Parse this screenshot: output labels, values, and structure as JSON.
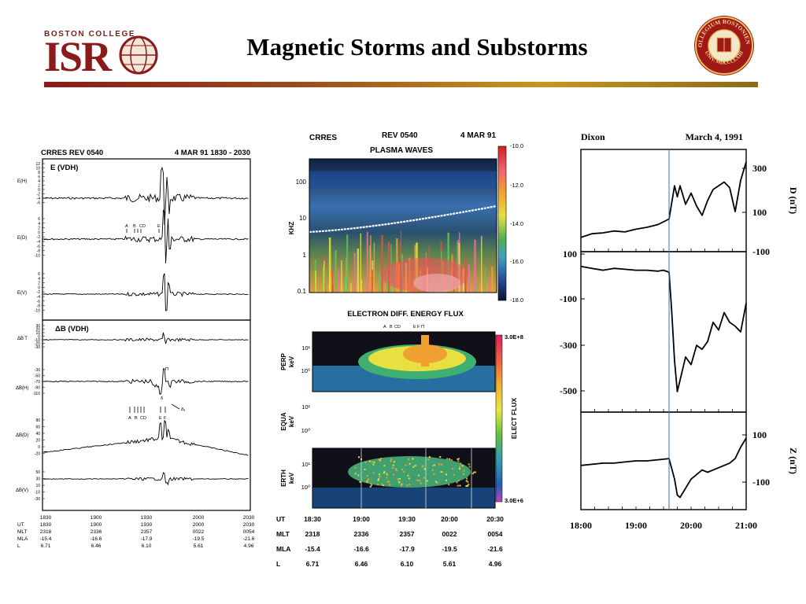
{
  "slide": {
    "title": "Magnetic Storms  and Substorms",
    "logo": {
      "subtitle": "BOSTON COLLEGE",
      "name": "ISR",
      "brand_color": "#8b1a1a"
    },
    "seal": {
      "text": "COLLEGIUM BOSTONIENSE",
      "motto": "UNIV. MDCCCLXIII"
    }
  },
  "chart_data": [
    {
      "type": "line",
      "title": "CRRES  REV 0540",
      "date_range": "4 MAR 91  1830 - 2030",
      "panel_e_title": "E (VDH)",
      "panel_b_title": "ΔB (VDH)",
      "series_labels": [
        "E(H)",
        "E(D)",
        "E(V)",
        "ΔB T",
        "ΔB(H)",
        "ΔB(D)",
        "ΔB(V)"
      ],
      "y_ticks_e": [
        "12",
        "10",
        "8",
        "6",
        "4",
        "2",
        "0",
        "-2",
        "-4",
        "-6"
      ],
      "y_ticks_e_short": [
        "6",
        "4",
        "2",
        "0",
        "-2",
        "-4",
        "-6",
        "-8",
        "-10"
      ],
      "y_ticks_b": [
        "30",
        "20",
        "10",
        "0",
        "-10",
        "-20",
        "-30"
      ],
      "y_ticks_bh": [
        "-30",
        "-50",
        "-70",
        "-90",
        "-110"
      ],
      "y_ticks_bd": [
        "80",
        "60",
        "40",
        "20",
        "0",
        "-20"
      ],
      "y_ticks_bv": [
        "50",
        "30",
        "10",
        "-10",
        "-30"
      ],
      "event_marks": [
        "A",
        "B",
        "CD",
        "E",
        "F"
      ],
      "annotations": [
        "Π",
        "Δ₁",
        "δ"
      ],
      "x_ticks": [
        "1830",
        "1900",
        "1930",
        "2000",
        "2030"
      ],
      "rows": [
        {
          "label": "UT",
          "values": [
            "1830",
            "1900",
            "1930",
            "2000",
            "2030"
          ]
        },
        {
          "label": "MLT",
          "values": [
            "2318",
            "2336",
            "2357",
            "0022",
            "0054"
          ]
        },
        {
          "label": "MLA",
          "values": [
            "-15.4",
            "-16.6",
            "-17.9",
            "-19.5",
            "-21.6"
          ]
        },
        {
          "label": "L",
          "values": [
            "6.71",
            "6.46",
            "6.10",
            "5.61",
            "4.96"
          ]
        }
      ]
    },
    {
      "type": "heatmap",
      "title": "CRRES",
      "rev": "REV 0540",
      "date": "4 MAR 91",
      "top_title": "PLASMA WAVES",
      "top_ylabel": "KHZ",
      "top_yticks": [
        "100",
        "10",
        "1",
        "0.1"
      ],
      "top_colorbar": [
        "-10.0",
        "-12.0",
        "-14.0",
        "-16.0",
        "-18.0"
      ],
      "mid_title": "ELECTRON DIFF. ENERGY FLUX",
      "event_marks": [
        "A",
        "B",
        "CD",
        "E",
        "F",
        "Π"
      ],
      "panels": [
        {
          "label": "PERP",
          "unit": "keV",
          "yticks": [
            "10¹",
            "10⁰"
          ]
        },
        {
          "label": "EQUA",
          "unit": "keV",
          "yticks": [
            "10¹",
            "10⁰"
          ]
        },
        {
          "label": "ERTH",
          "unit": "keV",
          "yticks": [
            "10¹",
            "10⁰"
          ]
        }
      ],
      "flux_colorbar": {
        "max": "3.0E+8",
        "min": "3.0E+6",
        "label": "ELECT FLUX"
      },
      "rows": [
        {
          "label": "UT",
          "values": [
            "18:30",
            "19:00",
            "19:30",
            "20:00",
            "20:30"
          ]
        },
        {
          "label": "MLT",
          "values": [
            "2318",
            "2336",
            "2357",
            "0022",
            "0054"
          ]
        },
        {
          "label": "MLA",
          "values": [
            "-15.4",
            "-16.6",
            "-17.9",
            "-19.5",
            "-21.6"
          ]
        },
        {
          "label": "L",
          "values": [
            "6.71",
            "6.46",
            "6.10",
            "5.61",
            "4.96"
          ]
        }
      ]
    },
    {
      "type": "line",
      "station": "Dixon",
      "date": "March 4, 1991",
      "x_ticks": [
        "18:00",
        "19:00",
        "20:00",
        "21:00"
      ],
      "x_range": [
        18.0,
        21.0
      ],
      "onset_time": 19.6,
      "panels": [
        {
          "name": "D",
          "ylabel": "D (nT)",
          "ticks": [
            "300",
            "100",
            "-100"
          ],
          "ylim": [
            -140,
            380
          ],
          "x": [
            18.0,
            18.2,
            18.4,
            18.6,
            18.8,
            19.0,
            19.2,
            19.4,
            19.6,
            19.7,
            19.75,
            19.8,
            19.9,
            20.0,
            20.1,
            20.2,
            20.3,
            20.4,
            20.5,
            20.6,
            20.7,
            20.8,
            20.9,
            21.0
          ],
          "y": [
            -80,
            -60,
            -55,
            -45,
            -50,
            -35,
            -25,
            -10,
            20,
            200,
            140,
            200,
            100,
            160,
            90,
            40,
            120,
            180,
            200,
            220,
            190,
            60,
            230,
            330
          ]
        },
        {
          "name": "H",
          "ylabel": "",
          "ticks": [
            "100",
            "-100",
            "-300",
            "-500"
          ],
          "ylim": [
            -650,
            150
          ],
          "x": [
            18.0,
            18.2,
            18.4,
            18.6,
            18.8,
            19.0,
            19.2,
            19.4,
            19.5,
            19.6,
            19.65,
            19.7,
            19.75,
            19.8,
            19.9,
            20.0,
            20.1,
            20.2,
            20.3,
            20.4,
            20.5,
            20.6,
            20.7,
            20.8,
            20.9,
            21.0
          ],
          "y": [
            90,
            80,
            70,
            80,
            75,
            70,
            70,
            65,
            70,
            60,
            -150,
            -400,
            -560,
            -500,
            -380,
            -420,
            -320,
            -340,
            -300,
            -200,
            -240,
            -150,
            -200,
            -220,
            -250,
            -100
          ]
        },
        {
          "name": "Z",
          "ylabel": "Z (nT)",
          "ticks": [
            "100",
            "-100"
          ],
          "ylim": [
            -200,
            200
          ],
          "x": [
            18.0,
            18.2,
            18.4,
            18.6,
            18.8,
            19.0,
            19.2,
            19.4,
            19.6,
            19.7,
            19.75,
            19.8,
            19.9,
            20.0,
            20.1,
            20.2,
            20.3,
            20.4,
            20.5,
            20.6,
            20.7,
            20.8,
            20.9,
            21.0
          ],
          "y": [
            -20,
            -15,
            -10,
            -10,
            -5,
            0,
            0,
            5,
            10,
            -80,
            -150,
            -160,
            -120,
            -80,
            -60,
            -40,
            -50,
            -40,
            -30,
            -20,
            -10,
            10,
            60,
            100
          ]
        }
      ]
    }
  ]
}
